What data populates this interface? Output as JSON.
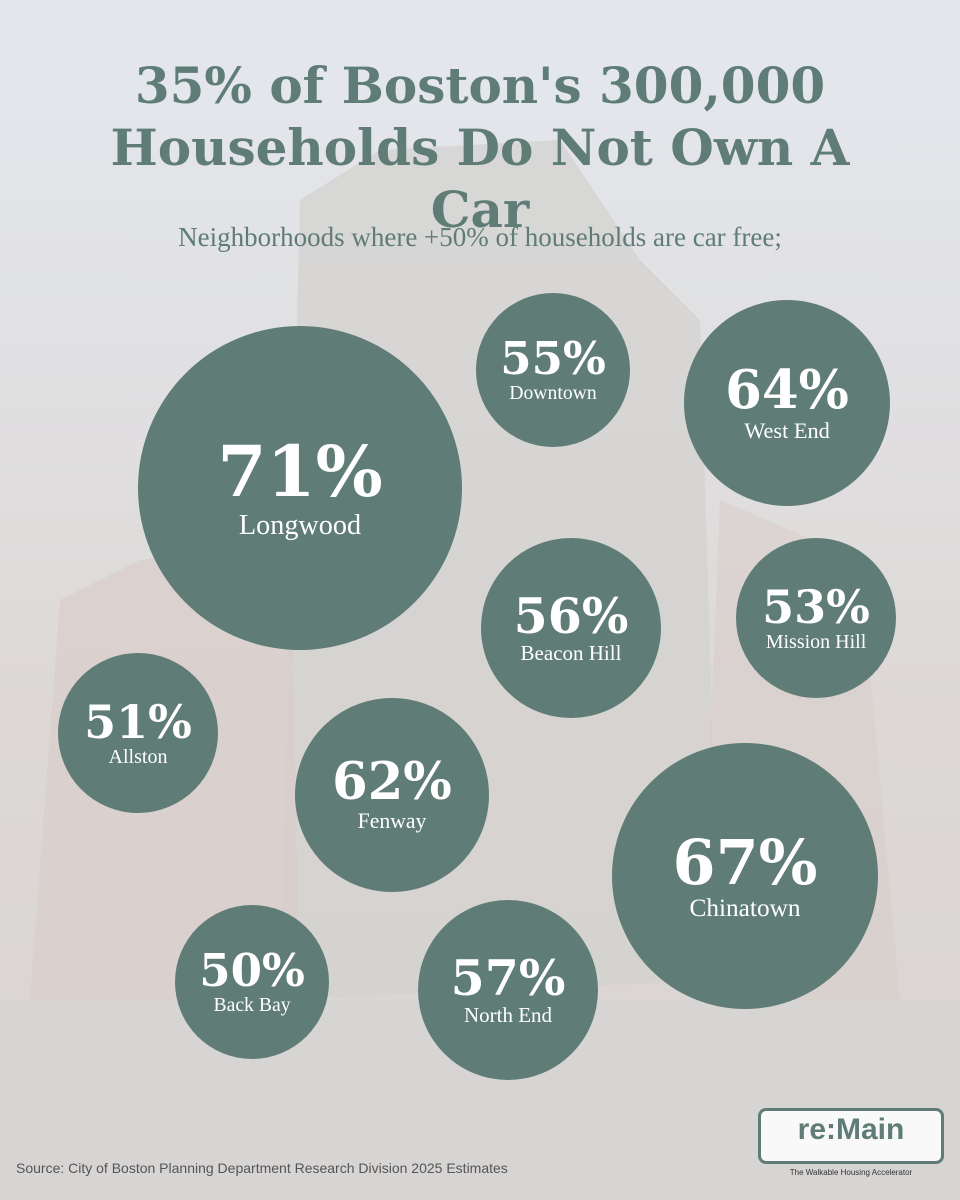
{
  "chart_data": {
    "type": "bubble",
    "title": "35% of Boston's 300,000 Households Do Not Own A Car",
    "subtitle": "Neighborhoods where +50% of households are car free;",
    "categories": [
      "Longwood",
      "Downtown",
      "West End",
      "Beacon Hill",
      "Mission Hill",
      "Allston",
      "Fenway",
      "Chinatown",
      "Back Bay",
      "North End"
    ],
    "values": [
      71,
      55,
      64,
      56,
      53,
      51,
      62,
      67,
      50,
      57
    ],
    "value_labels": [
      "71%",
      "55%",
      "64%",
      "56%",
      "53%",
      "51%",
      "62%",
      "67%",
      "50%",
      "57%"
    ],
    "color": "#5f7c76",
    "source": "Source: City of Boston Planning Department Research Division 2025 Estimates"
  },
  "logo": {
    "name": "re:Main",
    "tagline": "The Walkable Housing Accelerator"
  }
}
